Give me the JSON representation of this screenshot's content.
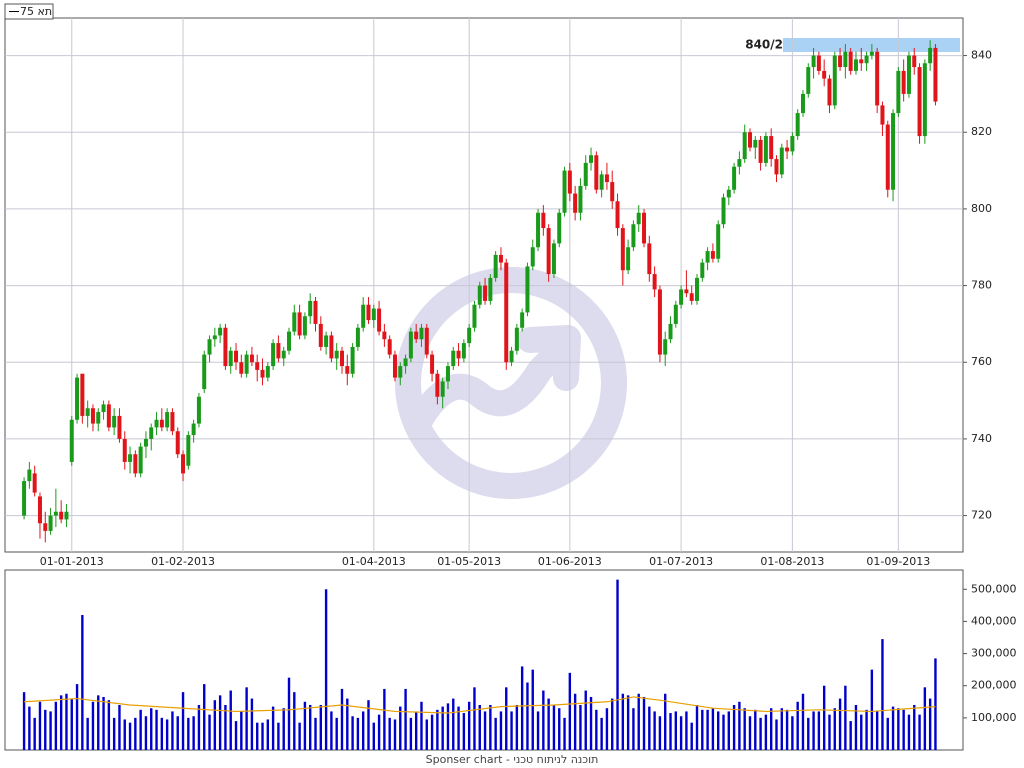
{
  "chart_data": [
    {
      "type": "candlestick",
      "legend": "תא 75",
      "annotation": "840/2",
      "up_color": "#1a9a1a",
      "down_color": "#e0151b",
      "grid": true,
      "xlim": [
        -3.6,
        177.2
      ],
      "xticks": [
        {
          "value": 9,
          "label": "01-01-2013"
        },
        {
          "value": 30,
          "label": "01-02-2013"
        },
        {
          "value": 66,
          "label": "01-04-2013"
        },
        {
          "value": 84,
          "label": "01-05-2013"
        },
        {
          "value": 103,
          "label": "01-06-2013"
        },
        {
          "value": 124,
          "label": "01-07-2013"
        },
        {
          "value": 145,
          "label": "01-08-2013"
        },
        {
          "value": 165,
          "label": "01-09-2013"
        }
      ],
      "ylim": [
        710.5,
        849.8
      ],
      "yticks": [
        720,
        740,
        760,
        780,
        800,
        820,
        840
      ],
      "ohlc": [
        [
          720,
          730,
          719,
          729
        ],
        [
          729,
          734,
          727,
          732
        ],
        [
          731,
          733,
          725,
          726
        ],
        [
          725,
          726,
          714,
          718
        ],
        [
          718,
          721,
          713,
          716
        ],
        [
          716,
          722,
          715,
          720
        ],
        [
          720,
          727,
          717,
          721
        ],
        [
          721,
          724,
          718,
          719
        ],
        [
          719,
          723,
          717,
          721
        ],
        [
          734,
          746,
          733,
          745
        ],
        [
          745,
          757,
          744,
          756
        ],
        [
          757,
          757,
          744,
          746
        ],
        [
          746,
          750,
          743,
          748
        ],
        [
          748,
          749,
          742,
          744
        ],
        [
          744,
          748,
          742,
          747
        ],
        [
          747,
          750,
          745,
          749
        ],
        [
          749,
          750,
          742,
          743
        ],
        [
          743,
          748,
          741,
          746
        ],
        [
          746,
          748,
          739,
          740
        ],
        [
          740,
          742,
          732,
          734
        ],
        [
          734,
          738,
          731,
          736
        ],
        [
          736,
          737,
          730,
          731
        ],
        [
          731,
          739,
          730,
          738
        ],
        [
          738,
          742,
          735,
          740
        ],
        [
          740,
          744,
          737,
          743
        ],
        [
          743,
          747,
          741,
          745
        ],
        [
          745,
          748,
          742,
          743
        ],
        [
          743,
          748,
          742,
          747
        ],
        [
          747,
          748,
          741,
          742
        ],
        [
          742,
          743,
          735,
          736
        ],
        [
          736,
          737,
          729,
          731
        ],
        [
          733,
          742,
          732,
          741
        ],
        [
          741,
          745,
          739,
          744
        ],
        [
          744,
          752,
          743,
          751
        ],
        [
          753,
          763,
          752,
          762
        ],
        [
          762,
          767,
          760,
          766
        ],
        [
          766,
          769,
          764,
          767
        ],
        [
          767,
          770,
          765,
          769
        ],
        [
          769,
          770,
          758,
          759
        ],
        [
          759,
          764,
          757,
          763
        ],
        [
          763,
          765,
          758,
          760
        ],
        [
          760,
          762,
          756,
          757
        ],
        [
          757,
          763,
          756,
          762
        ],
        [
          762,
          764,
          759,
          760
        ],
        [
          760,
          762,
          755,
          758
        ],
        [
          758,
          761,
          754,
          756
        ],
        [
          756,
          760,
          755,
          759
        ],
        [
          759,
          766,
          758,
          765
        ],
        [
          765,
          767,
          760,
          761
        ],
        [
          761,
          764,
          759,
          763
        ],
        [
          763,
          769,
          762,
          768
        ],
        [
          768,
          775,
          767,
          773
        ],
        [
          773,
          775,
          766,
          767
        ],
        [
          767,
          773,
          766,
          772
        ],
        [
          772,
          778,
          770,
          776
        ],
        [
          776,
          777,
          768,
          770
        ],
        [
          770,
          772,
          763,
          764
        ],
        [
          764,
          768,
          762,
          767
        ],
        [
          767,
          768,
          760,
          761
        ],
        [
          761,
          765,
          758,
          763
        ],
        [
          763,
          764,
          757,
          759
        ],
        [
          759,
          762,
          754,
          757
        ],
        [
          757,
          765,
          756,
          764
        ],
        [
          764,
          770,
          763,
          769
        ],
        [
          769,
          777,
          768,
          775
        ],
        [
          775,
          777,
          770,
          771
        ],
        [
          771,
          775,
          769,
          774
        ],
        [
          774,
          776,
          767,
          768
        ],
        [
          768,
          770,
          764,
          766
        ],
        [
          766,
          767,
          761,
          762
        ],
        [
          762,
          763,
          755,
          756
        ],
        [
          756,
          760,
          754,
          759
        ],
        [
          759,
          762,
          757,
          761
        ],
        [
          761,
          769,
          760,
          768
        ],
        [
          768,
          770,
          765,
          766
        ],
        [
          766,
          770,
          764,
          769
        ],
        [
          769,
          770,
          761,
          762
        ],
        [
          762,
          763,
          755,
          757
        ],
        [
          757,
          758,
          749,
          751
        ],
        [
          751,
          756,
          748,
          755
        ],
        [
          755,
          760,
          753,
          759
        ],
        [
          759,
          764,
          758,
          763
        ],
        [
          763,
          765,
          759,
          761
        ],
        [
          761,
          766,
          760,
          765
        ],
        [
          765,
          770,
          764,
          769
        ],
        [
          769,
          776,
          768,
          775
        ],
        [
          775,
          781,
          774,
          780
        ],
        [
          780,
          782,
          775,
          776
        ],
        [
          776,
          783,
          775,
          782
        ],
        [
          782,
          789,
          781,
          788
        ],
        [
          788,
          790,
          784,
          786
        ],
        [
          786,
          787,
          758,
          760
        ],
        [
          760,
          764,
          759,
          763
        ],
        [
          763,
          770,
          762,
          769
        ],
        [
          769,
          774,
          768,
          773
        ],
        [
          773,
          786,
          772,
          785
        ],
        [
          785,
          792,
          784,
          790
        ],
        [
          790,
          800,
          789,
          799
        ],
        [
          799,
          801,
          793,
          795
        ],
        [
          795,
          796,
          781,
          783
        ],
        [
          783,
          792,
          782,
          791
        ],
        [
          791,
          800,
          790,
          799
        ],
        [
          799,
          811,
          798,
          810
        ],
        [
          810,
          812,
          802,
          804
        ],
        [
          804,
          806,
          797,
          799
        ],
        [
          799,
          808,
          797,
          806
        ],
        [
          806,
          814,
          805,
          812
        ],
        [
          812,
          816,
          810,
          814
        ],
        [
          814,
          815,
          804,
          805
        ],
        [
          805,
          810,
          803,
          809
        ],
        [
          809,
          812,
          805,
          807
        ],
        [
          807,
          810,
          800,
          802
        ],
        [
          802,
          804,
          793,
          795
        ],
        [
          795,
          796,
          780,
          784
        ],
        [
          784,
          792,
          783,
          790
        ],
        [
          790,
          797,
          789,
          796
        ],
        [
          796,
          801,
          794,
          799
        ],
        [
          799,
          800,
          790,
          791
        ],
        [
          791,
          793,
          781,
          783
        ],
        [
          783,
          785,
          777,
          779
        ],
        [
          779,
          780,
          760,
          762
        ],
        [
          762,
          768,
          759,
          766
        ],
        [
          766,
          772,
          765,
          770
        ],
        [
          770,
          776,
          769,
          775
        ],
        [
          775,
          780,
          774,
          779
        ],
        [
          779,
          784,
          777,
          778
        ],
        [
          778,
          780,
          775,
          776
        ],
        [
          776,
          783,
          775,
          782
        ],
        [
          782,
          787,
          781,
          786
        ],
        [
          786,
          790,
          784,
          789
        ],
        [
          789,
          791,
          786,
          787
        ],
        [
          787,
          797,
          786,
          796
        ],
        [
          796,
          804,
          795,
          803
        ],
        [
          803,
          806,
          801,
          805
        ],
        [
          805,
          812,
          804,
          811
        ],
        [
          811,
          815,
          809,
          813
        ],
        [
          813,
          822,
          812,
          820
        ],
        [
          820,
          821,
          815,
          816
        ],
        [
          816,
          819,
          813,
          818
        ],
        [
          818,
          819,
          810,
          812
        ],
        [
          812,
          820,
          811,
          819
        ],
        [
          819,
          821,
          811,
          813
        ],
        [
          813,
          814,
          807,
          809
        ],
        [
          809,
          817,
          808,
          816
        ],
        [
          816,
          818,
          813,
          815
        ],
        [
          815,
          820,
          814,
          819
        ],
        [
          819,
          826,
          818,
          825
        ],
        [
          825,
          831,
          824,
          830
        ],
        [
          830,
          838,
          829,
          837
        ],
        [
          837,
          842,
          834,
          840
        ],
        [
          840,
          841,
          835,
          836
        ],
        [
          836,
          839,
          832,
          834
        ],
        [
          834,
          835,
          825,
          827
        ],
        [
          827,
          841,
          826,
          840
        ],
        [
          840,
          842,
          836,
          837
        ],
        [
          837,
          843,
          834,
          841
        ],
        [
          841,
          842,
          835,
          836
        ],
        [
          836,
          841,
          835,
          839
        ],
        [
          839,
          842,
          836,
          838
        ],
        [
          838,
          841,
          836,
          840
        ],
        [
          840,
          843,
          839,
          841
        ],
        [
          841,
          842,
          825,
          827
        ],
        [
          827,
          828,
          819,
          822
        ],
        [
          822,
          823,
          803,
          805
        ],
        [
          805,
          826,
          802,
          825
        ],
        [
          825,
          837,
          824,
          836
        ],
        [
          836,
          839,
          828,
          830
        ],
        [
          830,
          841,
          829,
          840
        ],
        [
          840,
          842,
          835,
          837
        ],
        [
          837,
          838,
          817,
          819
        ],
        [
          819,
          839,
          817,
          838
        ],
        [
          838,
          844,
          836,
          842
        ],
        [
          842,
          843,
          827,
          828
        ]
      ]
    },
    {
      "type": "bar",
      "color": "#0000cc",
      "grid": false,
      "xlim": [
        -3.6,
        177.2
      ],
      "ylim": [
        0,
        560000
      ],
      "yticks": [
        {
          "value": 100000,
          "label": "100,000"
        },
        {
          "value": 200000,
          "label": "200,000"
        },
        {
          "value": 300000,
          "label": "300,000"
        },
        {
          "value": 400000,
          "label": "400,000"
        },
        {
          "value": 500000,
          "label": "500,000"
        }
      ],
      "values": [
        180000,
        135000,
        100000,
        150000,
        125000,
        120000,
        150000,
        170000,
        175000,
        160000,
        205000,
        420000,
        100000,
        150000,
        170000,
        165000,
        155000,
        100000,
        140000,
        95000,
        85000,
        100000,
        125000,
        105000,
        130000,
        125000,
        100000,
        95000,
        120000,
        105000,
        180000,
        100000,
        105000,
        140000,
        205000,
        110000,
        155000,
        170000,
        140000,
        185000,
        90000,
        120000,
        195000,
        160000,
        85000,
        85000,
        95000,
        135000,
        85000,
        130000,
        225000,
        180000,
        85000,
        150000,
        140000,
        100000,
        140000,
        500000,
        120000,
        100000,
        190000,
        160000,
        105000,
        100000,
        120000,
        155000,
        85000,
        110000,
        190000,
        100000,
        95000,
        135000,
        190000,
        100000,
        120000,
        150000,
        95000,
        110000,
        125000,
        135000,
        145000,
        160000,
        135000,
        115000,
        150000,
        195000,
        140000,
        120000,
        140000,
        100000,
        120000,
        195000,
        120000,
        140000,
        260000,
        210000,
        250000,
        120000,
        185000,
        160000,
        140000,
        130000,
        100000,
        240000,
        175000,
        140000,
        185000,
        165000,
        125000,
        100000,
        130000,
        160000,
        530000,
        175000,
        170000,
        130000,
        175000,
        165000,
        135000,
        120000,
        105000,
        175000,
        115000,
        120000,
        105000,
        120000,
        85000,
        140000,
        125000,
        125000,
        130000,
        120000,
        110000,
        120000,
        140000,
        150000,
        130000,
        105000,
        125000,
        100000,
        110000,
        130000,
        95000,
        130000,
        125000,
        105000,
        150000,
        175000,
        100000,
        120000,
        120000,
        200000,
        110000,
        130000,
        160000,
        200000,
        90000,
        140000,
        110000,
        125000,
        250000,
        120000,
        345000,
        100000,
        135000,
        130000,
        125000,
        110000,
        140000,
        110000,
        195000,
        160000,
        285000
      ],
      "average": {
        "color": "#e8a000",
        "x": [
          0,
          10,
          20,
          30,
          40,
          50,
          60,
          70,
          80,
          90,
          100,
          110,
          115,
          120,
          130,
          140,
          150,
          160,
          172
        ],
        "values": [
          150000,
          160000,
          140000,
          130000,
          120000,
          125000,
          140000,
          120000,
          115000,
          135000,
          140000,
          150000,
          165000,
          155000,
          130000,
          120000,
          125000,
          120000,
          135000
        ]
      }
    }
  ],
  "footer": "Sponser chart - תוכנה לניתוח טכני"
}
